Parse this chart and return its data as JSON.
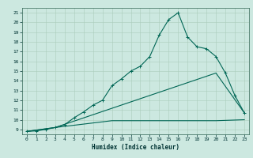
{
  "bg_color": "#cce8e0",
  "grid_color": "#aaccbb",
  "line_color": "#006655",
  "xlabel": "Humidex (Indice chaleur)",
  "xlim": [
    -0.5,
    23.5
  ],
  "ylim": [
    8.5,
    21.5
  ],
  "xticks": [
    0,
    1,
    2,
    3,
    4,
    5,
    6,
    7,
    8,
    9,
    10,
    11,
    12,
    13,
    14,
    15,
    16,
    17,
    18,
    19,
    20,
    21,
    22,
    23
  ],
  "yticks": [
    9,
    10,
    11,
    12,
    13,
    14,
    15,
    16,
    17,
    18,
    19,
    20,
    21
  ],
  "line1_x": [
    0,
    1,
    2,
    3,
    4,
    5,
    6,
    7,
    8,
    9,
    10,
    11,
    12,
    13,
    14,
    15,
    16,
    17,
    18,
    19,
    20,
    21,
    22,
    23
  ],
  "line1_y": [
    8.8,
    8.85,
    9.0,
    9.2,
    9.5,
    10.2,
    10.8,
    11.5,
    12.0,
    13.5,
    14.2,
    15.0,
    15.5,
    16.5,
    18.7,
    20.3,
    21.0,
    18.5,
    17.5,
    17.3,
    16.5,
    14.8,
    12.5,
    10.7
  ],
  "line2_x": [
    0,
    3,
    20,
    23
  ],
  "line2_y": [
    8.8,
    9.2,
    14.8,
    10.7
  ],
  "line3_x": [
    0,
    3,
    9,
    20,
    23
  ],
  "line3_y": [
    8.8,
    9.2,
    9.9,
    9.9,
    10.0
  ],
  "lw": 0.8,
  "ms": 2.5
}
